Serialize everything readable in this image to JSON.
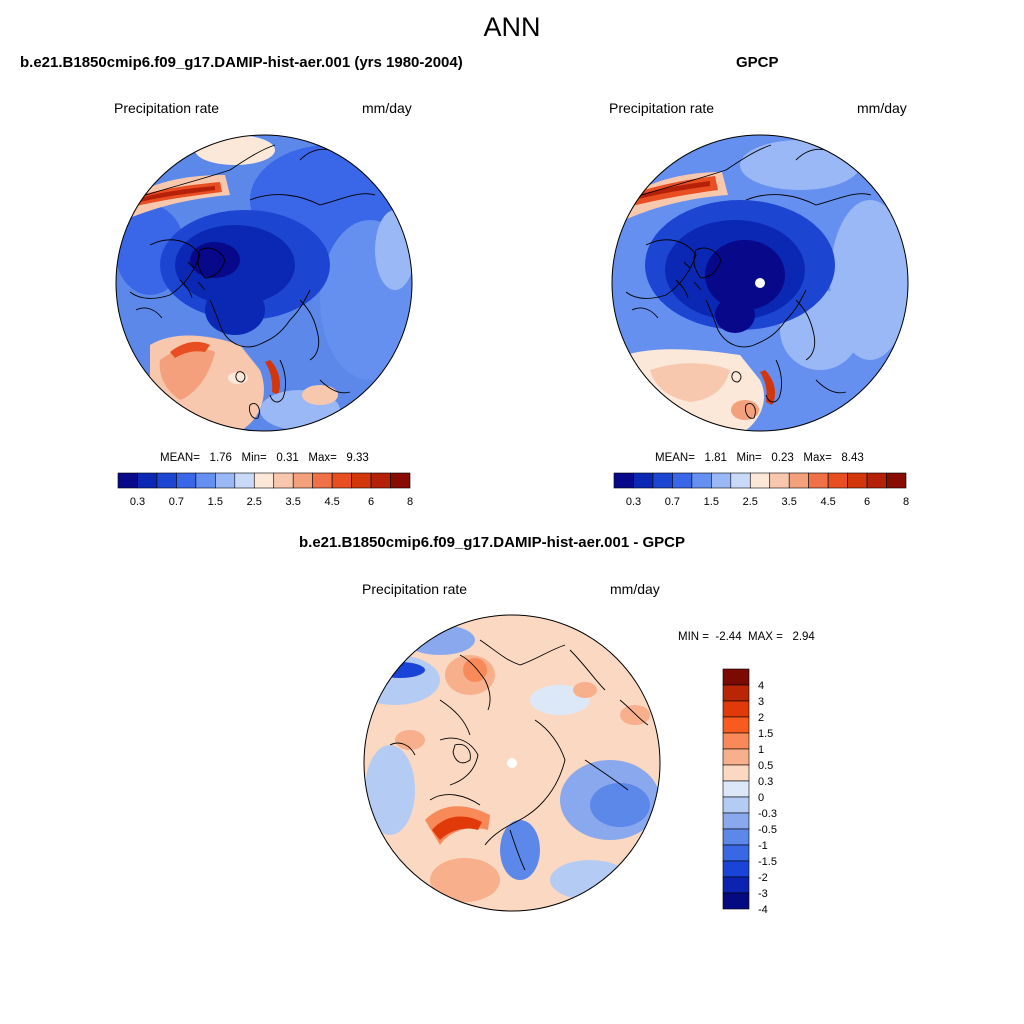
{
  "figure": {
    "title": "ANN",
    "panels": [
      {
        "id": "model",
        "title": "b.e21.B1850cmip6.f09_g17.DAMIP-hist-aer.001 (yrs 1980-2004)",
        "left_label": "Precipitation rate",
        "right_label": "mm/day",
        "stats": {
          "mean_label": "MEAN=",
          "mean": "1.76",
          "min_label": "Min=",
          "min": "0.31",
          "max_label": "Max=",
          "max": "9.33"
        },
        "colorbar_ticks": [
          "0.3",
          "0.7",
          "1.5",
          "2.5",
          "3.5",
          "4.5",
          "6",
          "8"
        ]
      },
      {
        "id": "obs",
        "title": "GPCP",
        "left_label": "Precipitation rate",
        "right_label": "mm/day",
        "stats": {
          "mean_label": "MEAN=",
          "mean": "1.81",
          "min_label": "Min=",
          "min": "0.23",
          "max_label": "Max=",
          "max": "8.43"
        },
        "colorbar_ticks": [
          "0.3",
          "0.7",
          "1.5",
          "2.5",
          "3.5",
          "4.5",
          "6",
          "8"
        ]
      },
      {
        "id": "diff",
        "title": "b.e21.B1850cmip6.f09_g17.DAMIP-hist-aer.001 - GPCP",
        "left_label": "Precipitation rate",
        "right_label": "mm/day",
        "stats": {
          "min_label": "MIN =",
          "min": "-2.44",
          "max_label": "MAX =",
          "max": "2.94"
        },
        "colorbar_ticks": [
          "4",
          "3",
          "2",
          "1.5",
          "1",
          "0.5",
          "0.3",
          "0",
          "-0.3",
          "-0.5",
          "-1",
          "-1.5",
          "-2",
          "-3",
          "-4"
        ]
      }
    ]
  },
  "palettes": {
    "sequential": [
      "#08088a",
      "#0a28b4",
      "#1c46d2",
      "#3a66e8",
      "#6590f0",
      "#9ab8f5",
      "#c8daf8",
      "#fbe8d8",
      "#f8c8ae",
      "#f4a07c",
      "#f07048",
      "#e84e22",
      "#d4360c",
      "#b42008",
      "#880c04"
    ],
    "diverging": [
      "#7a0a02",
      "#b82606",
      "#e03a0a",
      "#f85a20",
      "#f88a5a",
      "#f8b08c",
      "#fbd8c2",
      "#dce8f8",
      "#b4ccf4",
      "#8aa8ee",
      "#5c88ea",
      "#3868e4",
      "#1a44d8",
      "#0c22b0",
      "#040a80"
    ]
  }
}
